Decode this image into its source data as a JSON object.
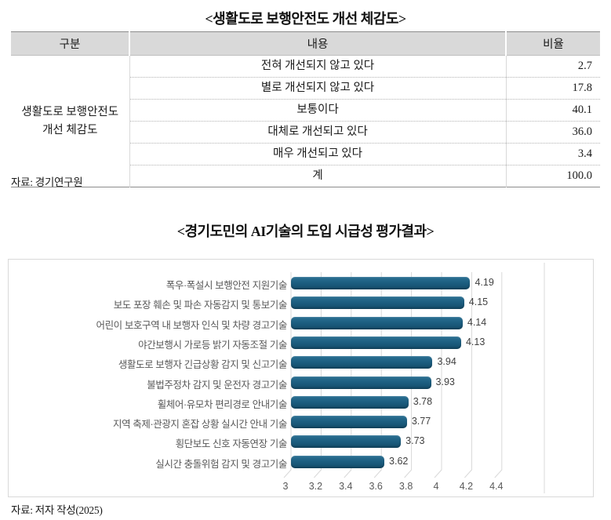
{
  "table_section": {
    "title": "<생활도로 보행안전도 개선 체감도>",
    "columns": [
      "구분",
      "내용",
      "비율"
    ],
    "row_group_label": "생활도로 보행안전도 개선 체감도",
    "rows": [
      {
        "content": "전혀 개선되지 않고 있다",
        "ratio": "2.7"
      },
      {
        "content": "별로 개선되지 않고 있다",
        "ratio": "17.8"
      },
      {
        "content": "보통이다",
        "ratio": "40.1"
      },
      {
        "content": "대체로 개선되고 있다",
        "ratio": "36.0"
      },
      {
        "content": "매우 개선되고 있다",
        "ratio": "3.4"
      },
      {
        "content": "계",
        "ratio": "100.0"
      }
    ],
    "source": "자료: 경기연구원"
  },
  "chart_section": {
    "title": "<경기도민의 AI기술의 도입 시급성 평가결과>",
    "source": "자료: 저자 작성(2025)"
  },
  "chart_data": {
    "type": "bar",
    "orientation": "horizontal",
    "title": "경기도민의 AI기술의 도입 시급성 평가결과",
    "categories": [
      "폭우·폭설시 보행안전 지원기술",
      "보도 포장 훼손 및 파손 자동감지 및 통보기술",
      "어린이 보호구역 내 보행자 인식 및 차량 경고기술",
      "야간보행시 가로등 밝기 자동조절 기술",
      "생활도로 보행자 긴급상황 감지 및 신고기술",
      "불법주정차 감지 및 운전자 경고기술",
      "휠체어·유모차 편리경로 안내기술",
      "지역 축제·관광지 혼잡 상황 실시간 안내 기술",
      "횡단보도 신호 자동연장 기술",
      "실시간 충돌위험 감지 및 경고기술"
    ],
    "values": [
      4.19,
      4.15,
      4.14,
      4.13,
      3.94,
      3.93,
      3.78,
      3.77,
      3.73,
      3.62
    ],
    "xlim": [
      3,
      4.4
    ],
    "xticks": [
      3,
      3.2,
      3.4,
      3.6,
      3.8,
      4,
      4.2,
      4.4
    ],
    "grid": true,
    "legend": false,
    "data_labels": true,
    "bar_color": "#1d5f81",
    "grid_color": "#d9d9d9",
    "label_color": "#595959",
    "header_bg": "#d9d9d9"
  }
}
